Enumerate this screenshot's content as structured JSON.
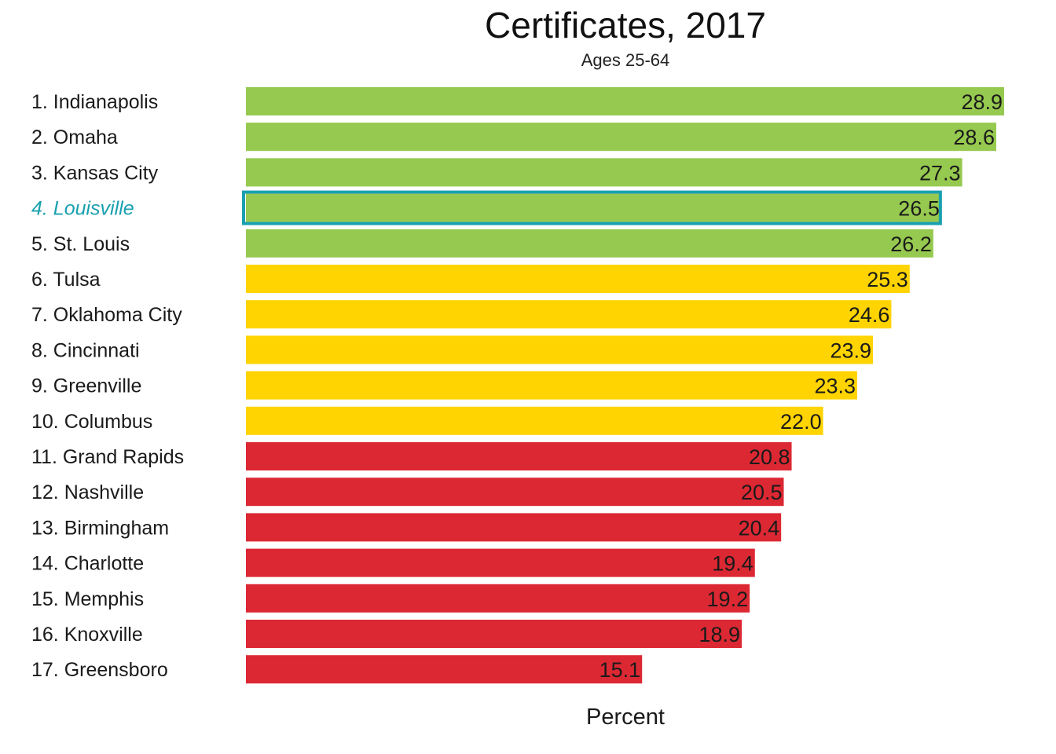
{
  "chart_data": {
    "type": "bar",
    "orientation": "horizontal",
    "title": "Certificates, 2017",
    "subtitle": "Ages 25-64",
    "xlabel": "Percent",
    "ylabel": "",
    "xlim": [
      0,
      28.9
    ],
    "grid": false,
    "legend": "none",
    "highlight_category": "4. Louisville",
    "highlight_color": "#1aa0b0",
    "colors": {
      "top": "#96c94f",
      "middle": "#ffd400",
      "bottom": "#dc2833"
    },
    "categories": [
      "1. Indianapolis",
      "2. Omaha",
      "3. Kansas City",
      "4. Louisville",
      "5. St. Louis",
      "6. Tulsa",
      "7. Oklahoma City",
      "8. Cincinnati",
      "9. Greenville",
      "10. Columbus",
      "11. Grand Rapids",
      "12. Nashville",
      "13. Birmingham",
      "14. Charlotte",
      "15. Memphis",
      "16. Knoxville",
      "17. Greensboro"
    ],
    "values": [
      28.9,
      28.6,
      27.3,
      26.5,
      26.2,
      25.3,
      24.6,
      23.9,
      23.3,
      22.0,
      20.8,
      20.5,
      20.4,
      19.4,
      19.2,
      18.9,
      15.1
    ],
    "value_labels": [
      "28.9",
      "28.6",
      "27.3",
      "26.5",
      "26.2",
      "25.3",
      "24.6",
      "23.9",
      "23.3",
      "22.0",
      "20.8",
      "20.5",
      "20.4",
      "19.4",
      "19.2",
      "18.9",
      "15.1"
    ],
    "tiers": [
      "top",
      "top",
      "top",
      "top",
      "top",
      "middle",
      "middle",
      "middle",
      "middle",
      "middle",
      "bottom",
      "bottom",
      "bottom",
      "bottom",
      "bottom",
      "bottom",
      "bottom"
    ]
  }
}
